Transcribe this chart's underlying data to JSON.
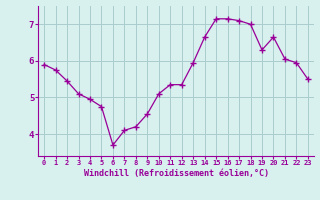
{
  "x": [
    0,
    1,
    2,
    3,
    4,
    5,
    6,
    7,
    8,
    9,
    10,
    11,
    12,
    13,
    14,
    15,
    16,
    17,
    18,
    19,
    20,
    21,
    22,
    23
  ],
  "y": [
    5.9,
    5.75,
    5.45,
    5.1,
    4.95,
    4.75,
    3.7,
    4.1,
    4.2,
    4.55,
    5.1,
    5.35,
    5.35,
    5.95,
    6.65,
    7.15,
    7.15,
    7.1,
    7.0,
    6.3,
    6.65,
    6.05,
    5.95,
    5.5
  ],
  "line_color": "#990099",
  "marker": "+",
  "marker_size": 4,
  "bg_color": "#d8f0ee",
  "grid_color": "#aacccc",
  "xlabel": "Windchill (Refroidissement éolien,°C)",
  "xlabel_color": "#990099",
  "xtick_labels": [
    "0",
    "1",
    "2",
    "3",
    "4",
    "5",
    "6",
    "7",
    "8",
    "9",
    "10",
    "11",
    "12",
    "13",
    "14",
    "15",
    "16",
    "17",
    "18",
    "19",
    "20",
    "21",
    "22",
    "23"
  ],
  "ytick_values": [
    4,
    5,
    6,
    7
  ],
  "xlim": [
    -0.5,
    23.5
  ],
  "ylim": [
    3.4,
    7.5
  ],
  "tick_color": "#990099",
  "spine_color": "#990099",
  "label_fontsize": 5.0,
  "xlabel_fontsize": 6.0,
  "ylabel_fontsize": 6.5
}
